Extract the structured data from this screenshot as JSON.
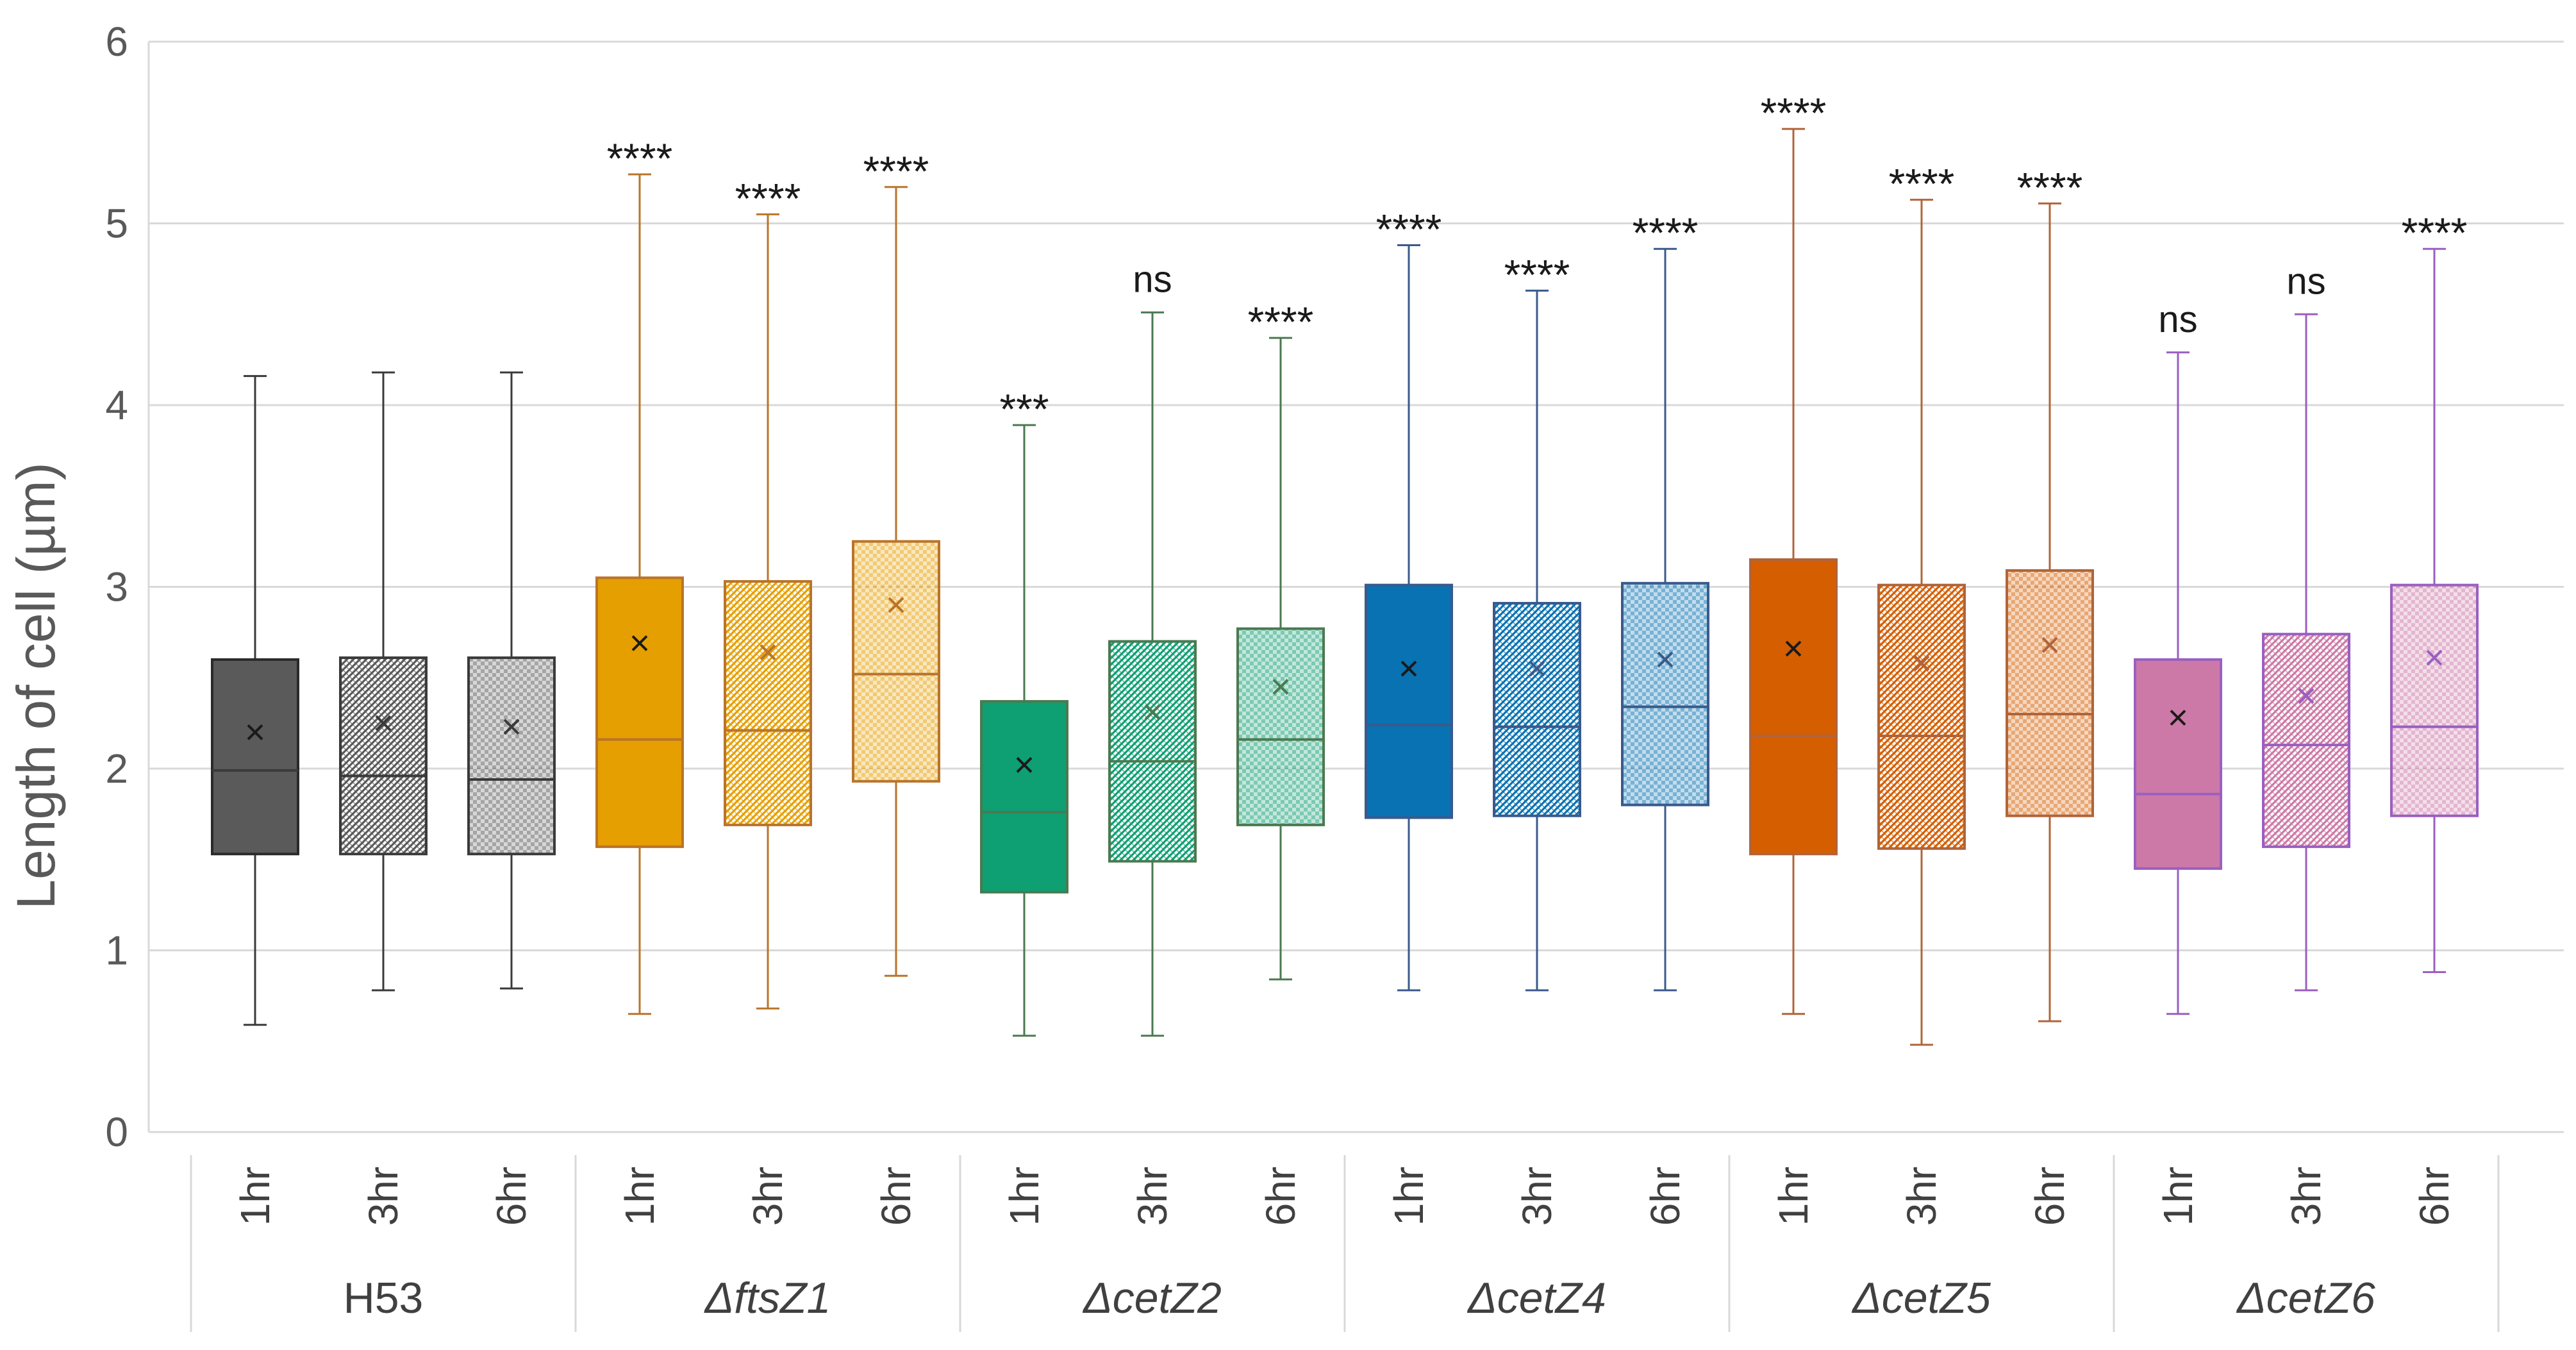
{
  "chart_data": {
    "type": "boxplot",
    "title": "",
    "xlabel": "",
    "ylabel": "Length of cell (µm)",
    "ylim": [
      0,
      6
    ],
    "yticks": [
      0,
      1,
      2,
      3,
      4,
      5,
      6
    ],
    "grid": true,
    "groups": [
      {
        "name": "H53",
        "italic": false,
        "color": "#5a5a5a",
        "line_color": "#3a3a3a",
        "boxes": [
          {
            "label": "1hr",
            "min": 0.59,
            "q1": 1.53,
            "median": 1.99,
            "q3": 2.6,
            "max": 4.16,
            "mean": 2.2,
            "sig": "",
            "pattern": "solid"
          },
          {
            "label": "3hr",
            "min": 0.78,
            "q1": 1.53,
            "median": 1.96,
            "q3": 2.61,
            "max": 4.18,
            "mean": 2.25,
            "sig": "",
            "pattern": "diag"
          },
          {
            "label": "6hr",
            "min": 0.79,
            "q1": 1.53,
            "median": 1.94,
            "q3": 2.61,
            "max": 4.18,
            "mean": 2.23,
            "sig": "",
            "pattern": "check"
          }
        ]
      },
      {
        "name": "ΔftsZ1",
        "italic": true,
        "color": "#e69f00",
        "line_color": "#b9742a",
        "boxes": [
          {
            "label": "1hr",
            "min": 0.65,
            "q1": 1.57,
            "median": 2.16,
            "q3": 3.05,
            "max": 5.27,
            "mean": 2.69,
            "sig": "****",
            "pattern": "solid"
          },
          {
            "label": "3hr",
            "min": 0.68,
            "q1": 1.69,
            "median": 2.21,
            "q3": 3.03,
            "max": 5.05,
            "mean": 2.64,
            "sig": "****",
            "pattern": "diag"
          },
          {
            "label": "6hr",
            "min": 0.86,
            "q1": 1.93,
            "median": 2.52,
            "q3": 3.25,
            "max": 5.2,
            "mean": 2.9,
            "sig": "****",
            "pattern": "check"
          }
        ]
      },
      {
        "name": "ΔcetZ2",
        "italic": true,
        "color": "#0e9f73",
        "line_color": "#4a7a50",
        "boxes": [
          {
            "label": "1hr",
            "min": 0.53,
            "q1": 1.32,
            "median": 1.76,
            "q3": 2.37,
            "max": 3.89,
            "mean": 2.02,
            "sig": "***",
            "pattern": "solid"
          },
          {
            "label": "3hr",
            "min": 0.53,
            "q1": 1.49,
            "median": 2.04,
            "q3": 2.7,
            "max": 4.51,
            "mean": 2.31,
            "sig": "ns",
            "pattern": "diag"
          },
          {
            "label": "6hr",
            "min": 0.84,
            "q1": 1.69,
            "median": 2.16,
            "q3": 2.77,
            "max": 4.37,
            "mean": 2.45,
            "sig": "****",
            "pattern": "check"
          }
        ]
      },
      {
        "name": "ΔcetZ4",
        "italic": true,
        "color": "#0872b2",
        "line_color": "#3a5a8c",
        "boxes": [
          {
            "label": "1hr",
            "min": 0.78,
            "q1": 1.73,
            "median": 2.24,
            "q3": 3.01,
            "max": 4.88,
            "mean": 2.55,
            "sig": "****",
            "pattern": "solid"
          },
          {
            "label": "3hr",
            "min": 0.78,
            "q1": 1.74,
            "median": 2.23,
            "q3": 2.91,
            "max": 4.63,
            "mean": 2.55,
            "sig": "****",
            "pattern": "diag"
          },
          {
            "label": "6hr",
            "min": 0.78,
            "q1": 1.8,
            "median": 2.34,
            "q3": 3.02,
            "max": 4.86,
            "mean": 2.6,
            "sig": "****",
            "pattern": "check"
          }
        ]
      },
      {
        "name": "ΔcetZ5",
        "italic": true,
        "color": "#d55e00",
        "line_color": "#b0643a",
        "boxes": [
          {
            "label": "1hr",
            "min": 0.65,
            "q1": 1.53,
            "median": 2.18,
            "q3": 3.15,
            "max": 5.52,
            "mean": 2.66,
            "sig": "****",
            "pattern": "solid"
          },
          {
            "label": "3hr",
            "min": 0.48,
            "q1": 1.56,
            "median": 2.18,
            "q3": 3.01,
            "max": 5.13,
            "mean": 2.58,
            "sig": "****",
            "pattern": "diag"
          },
          {
            "label": "6hr",
            "min": 0.61,
            "q1": 1.74,
            "median": 2.3,
            "q3": 3.09,
            "max": 5.11,
            "mean": 2.68,
            "sig": "****",
            "pattern": "check"
          }
        ]
      },
      {
        "name": "ΔcetZ6",
        "italic": true,
        "color": "#cc79a7",
        "line_color": "#9a5fc0",
        "boxes": [
          {
            "label": "1hr",
            "min": 0.65,
            "q1": 1.45,
            "median": 1.86,
            "q3": 2.6,
            "max": 4.29,
            "mean": 2.28,
            "sig": "ns",
            "pattern": "solid"
          },
          {
            "label": "3hr",
            "min": 0.78,
            "q1": 1.57,
            "median": 2.13,
            "q3": 2.74,
            "max": 4.5,
            "mean": 2.4,
            "sig": "ns",
            "pattern": "diag"
          },
          {
            "label": "6hr",
            "min": 0.88,
            "q1": 1.74,
            "median": 2.23,
            "q3": 3.01,
            "max": 4.86,
            "mean": 2.61,
            "sig": "****",
            "pattern": "check"
          }
        ]
      }
    ]
  }
}
